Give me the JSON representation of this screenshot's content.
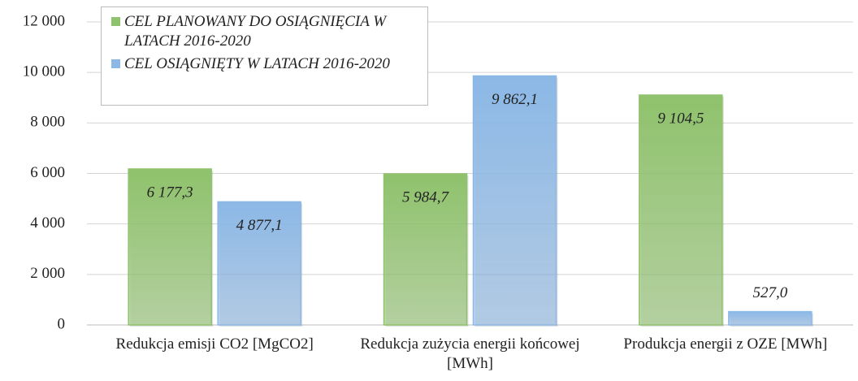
{
  "chart_data": {
    "type": "bar",
    "categories": [
      "Redukcja emisji CO2 [MgCO2]",
      "Redukcja zużycia energii końcowej [MWh]",
      "Produkcja energii z OZE [MWh]"
    ],
    "series": [
      {
        "name": "CEL PLANOWANY DO OSIĄGNIĘCIA W LATACH 2016-2020",
        "color": "#8fc26c",
        "values": [
          6177.3,
          5984.7,
          9104.5
        ],
        "value_labels": [
          "6 177,3",
          "5 984,7",
          "9 104,5"
        ]
      },
      {
        "name": "CEL OSIĄGNIĘTY W LATACH 2016-2020",
        "color": "#8cb8e6",
        "values": [
          4877.1,
          9862.1,
          527.0
        ],
        "value_labels": [
          "4 877,1",
          "9 862,1",
          "527,0"
        ]
      }
    ],
    "ylim": [
      0,
      12000
    ],
    "yticks": [
      0,
      {
        "value": 2000,
        "label": "2 000"
      },
      {
        "value": 4000,
        "label": "4 000"
      },
      {
        "value": 6000,
        "label": "6 000"
      },
      {
        "value": 8000,
        "label": "8 000"
      },
      {
        "value": 10000,
        "label": "10 000"
      },
      {
        "value": 12000,
        "label": "12 000"
      }
    ],
    "grid": true
  }
}
